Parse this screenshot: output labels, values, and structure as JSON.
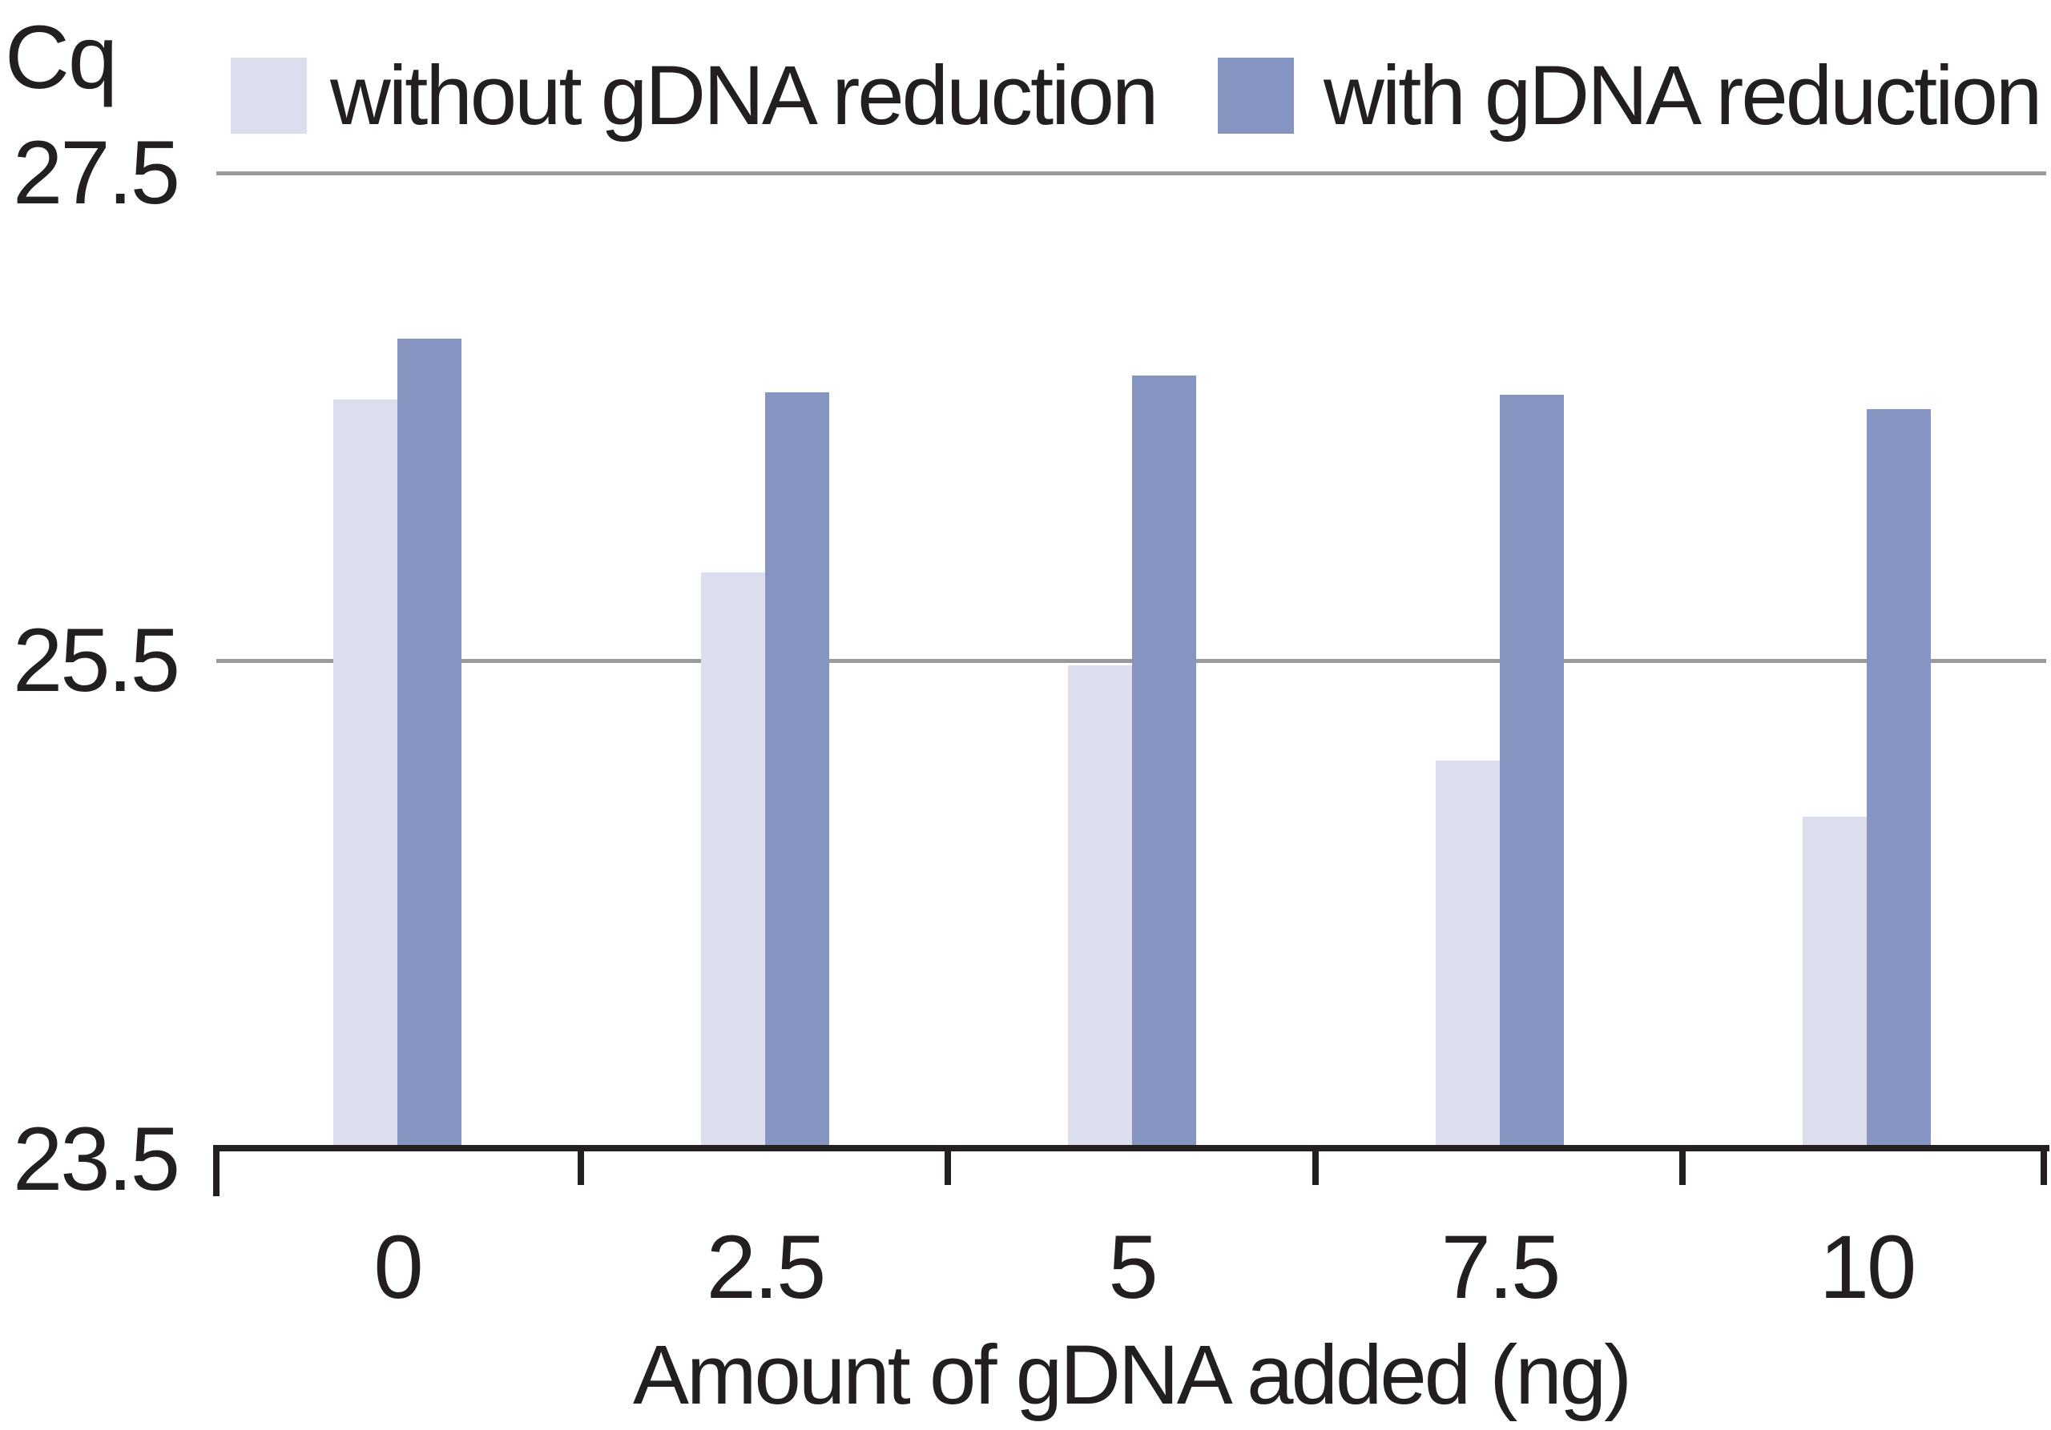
{
  "chart_data": {
    "type": "bar",
    "title": "",
    "ylabel": "Cq",
    "xlabel": "Amount of gDNA added (ng)",
    "categories": [
      "0",
      "2.5",
      "5",
      "7.5",
      "10"
    ],
    "series": [
      {
        "name": "without gDNA reduction",
        "color": "#dcdeee",
        "values": [
          26.57,
          25.86,
          25.48,
          25.09,
          24.86
        ]
      },
      {
        "name": "with gDNA reduction",
        "color": "#8594c1",
        "values": [
          26.82,
          26.6,
          26.67,
          26.59,
          26.53
        ]
      }
    ],
    "ylim": [
      23.5,
      27.5
    ],
    "yticks": [
      23.5,
      25.5,
      27.5
    ],
    "ytick_labels": [
      "23.5",
      "25.5",
      "27.5"
    ],
    "grid": "horizontal-gridlines-at-25.5-and-27.5",
    "legend_position": "top",
    "colors": {
      "background": "#ffffff",
      "text": "#231f20",
      "gridline": "#9a9a9a",
      "axis": "#231f20"
    }
  }
}
